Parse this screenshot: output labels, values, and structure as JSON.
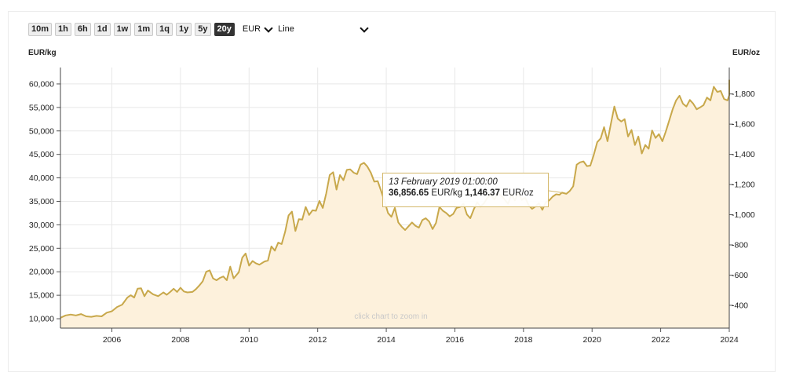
{
  "toolbar": {
    "ranges": [
      "10m",
      "1h",
      "6h",
      "1d",
      "1w",
      "1m",
      "1q",
      "1y",
      "5y",
      "20y"
    ],
    "active_range": "20y",
    "currency": "EUR",
    "chart_type": "Line"
  },
  "units": {
    "left": "EUR/kg",
    "right": "EUR/oz"
  },
  "tooltip": {
    "date": "13 February 2019 01:00:00",
    "value_kg": "36,856.65",
    "unit_kg": "EUR/kg",
    "value_oz": "1,146.37",
    "unit_oz": "EUR/oz"
  },
  "watermark": "click chart to zoom in",
  "colors": {
    "line": "#c8a84b",
    "fill": "#fdf1dc",
    "tooltip_border": "#d4b86a",
    "active_button": "#333333"
  },
  "chart_data": {
    "type": "area",
    "x_ticks": [
      "2006",
      "2008",
      "2010",
      "2012",
      "2014",
      "2016",
      "2018",
      "2020",
      "2022",
      "2024"
    ],
    "y_left_ticks": [
      "10,000",
      "15,000",
      "20,000",
      "25,000",
      "30,000",
      "35,000",
      "40,000",
      "45,000",
      "50,000",
      "55,000",
      "60,000"
    ],
    "y_right_ticks": [
      "400",
      "600",
      "800",
      "1,000",
      "1,200",
      "1,400",
      "1,600",
      "1,800"
    ],
    "xlim": [
      2004.5,
      2024.0
    ],
    "ylim": [
      8000,
      63500
    ],
    "ylim_right": [
      248.8,
      1975.1
    ],
    "grid": true,
    "series": [
      {
        "values": [
          [
            2004.5,
            10200
          ],
          [
            2004.65,
            10700
          ],
          [
            2004.8,
            10900
          ],
          [
            2004.95,
            10700
          ],
          [
            2005.1,
            11000
          ],
          [
            2005.25,
            10500
          ],
          [
            2005.4,
            10400
          ],
          [
            2005.55,
            10600
          ],
          [
            2005.7,
            10500
          ],
          [
            2005.85,
            11300
          ],
          [
            2006.0,
            11600
          ],
          [
            2006.15,
            12500
          ],
          [
            2006.3,
            13000
          ],
          [
            2006.45,
            14500
          ],
          [
            2006.55,
            15000
          ],
          [
            2006.65,
            14500
          ],
          [
            2006.75,
            16400
          ],
          [
            2006.85,
            16500
          ],
          [
            2006.95,
            14800
          ],
          [
            2007.05,
            16000
          ],
          [
            2007.2,
            15200
          ],
          [
            2007.35,
            14800
          ],
          [
            2007.5,
            15600
          ],
          [
            2007.6,
            15100
          ],
          [
            2007.7,
            15700
          ],
          [
            2007.8,
            16400
          ],
          [
            2007.9,
            15700
          ],
          [
            2008.0,
            16600
          ],
          [
            2008.1,
            15800
          ],
          [
            2008.2,
            15600
          ],
          [
            2008.35,
            15700
          ],
          [
            2008.45,
            16300
          ],
          [
            2008.55,
            17100
          ],
          [
            2008.65,
            18000
          ],
          [
            2008.75,
            20000
          ],
          [
            2008.85,
            20300
          ],
          [
            2008.95,
            18600
          ],
          [
            2009.05,
            18200
          ],
          [
            2009.15,
            18700
          ],
          [
            2009.25,
            19000
          ],
          [
            2009.35,
            18200
          ],
          [
            2009.45,
            21100
          ],
          [
            2009.55,
            18600
          ],
          [
            2009.7,
            19900
          ],
          [
            2009.8,
            23000
          ],
          [
            2009.9,
            23900
          ],
          [
            2010.0,
            21300
          ],
          [
            2010.1,
            22300
          ],
          [
            2010.2,
            21800
          ],
          [
            2010.3,
            21500
          ],
          [
            2010.45,
            22200
          ],
          [
            2010.55,
            22400
          ],
          [
            2010.65,
            25400
          ],
          [
            2010.75,
            24500
          ],
          [
            2010.85,
            26200
          ],
          [
            2010.95,
            25900
          ],
          [
            2011.05,
            28500
          ],
          [
            2011.15,
            32000
          ],
          [
            2011.25,
            32800
          ],
          [
            2011.35,
            28700
          ],
          [
            2011.45,
            31200
          ],
          [
            2011.55,
            31100
          ],
          [
            2011.65,
            33800
          ],
          [
            2011.75,
            32100
          ],
          [
            2011.85,
            33100
          ],
          [
            2011.95,
            33000
          ],
          [
            2012.05,
            35100
          ],
          [
            2012.15,
            33600
          ],
          [
            2012.25,
            36700
          ],
          [
            2012.35,
            40600
          ],
          [
            2012.45,
            41200
          ],
          [
            2012.55,
            37500
          ],
          [
            2012.65,
            40600
          ],
          [
            2012.75,
            39500
          ],
          [
            2012.85,
            41700
          ],
          [
            2012.95,
            41800
          ],
          [
            2013.05,
            41100
          ],
          [
            2013.15,
            40800
          ],
          [
            2013.25,
            42800
          ],
          [
            2013.35,
            43200
          ],
          [
            2013.45,
            42400
          ],
          [
            2013.55,
            41100
          ],
          [
            2013.65,
            39200
          ],
          [
            2013.75,
            39300
          ],
          [
            2013.85,
            37200
          ],
          [
            2013.95,
            35000
          ],
          [
            2014.05,
            32500
          ],
          [
            2014.15,
            31700
          ],
          [
            2014.25,
            33600
          ],
          [
            2014.35,
            30500
          ],
          [
            2014.45,
            29600
          ],
          [
            2014.55,
            28900
          ],
          [
            2014.65,
            29700
          ],
          [
            2014.75,
            30500
          ],
          [
            2014.85,
            29800
          ],
          [
            2014.95,
            29400
          ],
          [
            2015.05,
            31000
          ],
          [
            2015.15,
            31400
          ],
          [
            2015.25,
            30700
          ],
          [
            2015.35,
            29100
          ],
          [
            2015.45,
            30400
          ],
          [
            2015.55,
            33800
          ],
          [
            2015.65,
            33000
          ],
          [
            2015.75,
            32500
          ],
          [
            2015.85,
            31800
          ],
          [
            2015.95,
            32300
          ],
          [
            2016.05,
            33600
          ],
          [
            2016.15,
            33800
          ],
          [
            2016.25,
            34500
          ],
          [
            2016.35,
            32200
          ],
          [
            2016.45,
            31400
          ],
          [
            2016.55,
            33300
          ],
          [
            2016.65,
            34800
          ],
          [
            2016.75,
            33900
          ],
          [
            2016.85,
            34600
          ],
          [
            2016.95,
            35800
          ],
          [
            2017.05,
            36400
          ],
          [
            2017.15,
            35400
          ],
          [
            2017.25,
            36700
          ],
          [
            2017.35,
            36200
          ],
          [
            2017.45,
            35400
          ],
          [
            2017.55,
            34500
          ],
          [
            2017.65,
            36500
          ],
          [
            2017.75,
            35200
          ],
          [
            2017.85,
            36900
          ],
          [
            2017.95,
            35300
          ],
          [
            2018.05,
            35800
          ],
          [
            2018.15,
            34200
          ],
          [
            2018.25,
            33400
          ],
          [
            2018.35,
            33900
          ],
          [
            2018.45,
            34600
          ],
          [
            2018.55,
            33200
          ],
          [
            2018.65,
            34800
          ],
          [
            2018.75,
            35200
          ],
          [
            2018.85,
            36000
          ],
          [
            2018.95,
            36500
          ],
          [
            2019.05,
            36400
          ],
          [
            2019.12,
            36857
          ],
          [
            2019.25,
            36600
          ],
          [
            2019.35,
            37200
          ],
          [
            2019.45,
            38200
          ],
          [
            2019.55,
            42800
          ],
          [
            2019.65,
            43300
          ],
          [
            2019.75,
            43500
          ],
          [
            2019.85,
            42500
          ],
          [
            2019.95,
            42600
          ],
          [
            2020.05,
            44900
          ],
          [
            2020.15,
            47600
          ],
          [
            2020.25,
            48400
          ],
          [
            2020.35,
            50800
          ],
          [
            2020.45,
            47800
          ],
          [
            2020.55,
            51600
          ],
          [
            2020.65,
            55200
          ],
          [
            2020.75,
            52600
          ],
          [
            2020.85,
            52000
          ],
          [
            2020.95,
            52500
          ],
          [
            2021.05,
            48800
          ],
          [
            2021.15,
            50200
          ],
          [
            2021.25,
            47000
          ],
          [
            2021.35,
            48800
          ],
          [
            2021.45,
            45200
          ],
          [
            2021.55,
            47000
          ],
          [
            2021.65,
            46200
          ],
          [
            2021.75,
            50100
          ],
          [
            2021.85,
            48500
          ],
          [
            2021.95,
            49300
          ],
          [
            2022.05,
            47800
          ],
          [
            2022.15,
            49900
          ],
          [
            2022.25,
            52200
          ],
          [
            2022.35,
            54600
          ],
          [
            2022.45,
            56500
          ],
          [
            2022.55,
            57500
          ],
          [
            2022.65,
            55800
          ],
          [
            2022.75,
            55200
          ],
          [
            2022.85,
            56600
          ],
          [
            2022.95,
            55800
          ],
          [
            2023.05,
            54600
          ],
          [
            2023.15,
            55000
          ],
          [
            2023.25,
            55500
          ],
          [
            2023.35,
            57100
          ],
          [
            2023.45,
            56500
          ],
          [
            2023.55,
            59400
          ],
          [
            2023.65,
            58300
          ],
          [
            2023.75,
            58500
          ],
          [
            2023.85,
            56800
          ],
          [
            2023.95,
            56500
          ],
          [
            2024.05,
            57600
          ],
          [
            2024.15,
            60200
          ],
          [
            2024.25,
            58500
          ],
          [
            2024.35,
            59800
          ],
          [
            2024.45,
            60600
          ],
          [
            2024.5,
            60900
          ]
        ]
      }
    ]
  }
}
